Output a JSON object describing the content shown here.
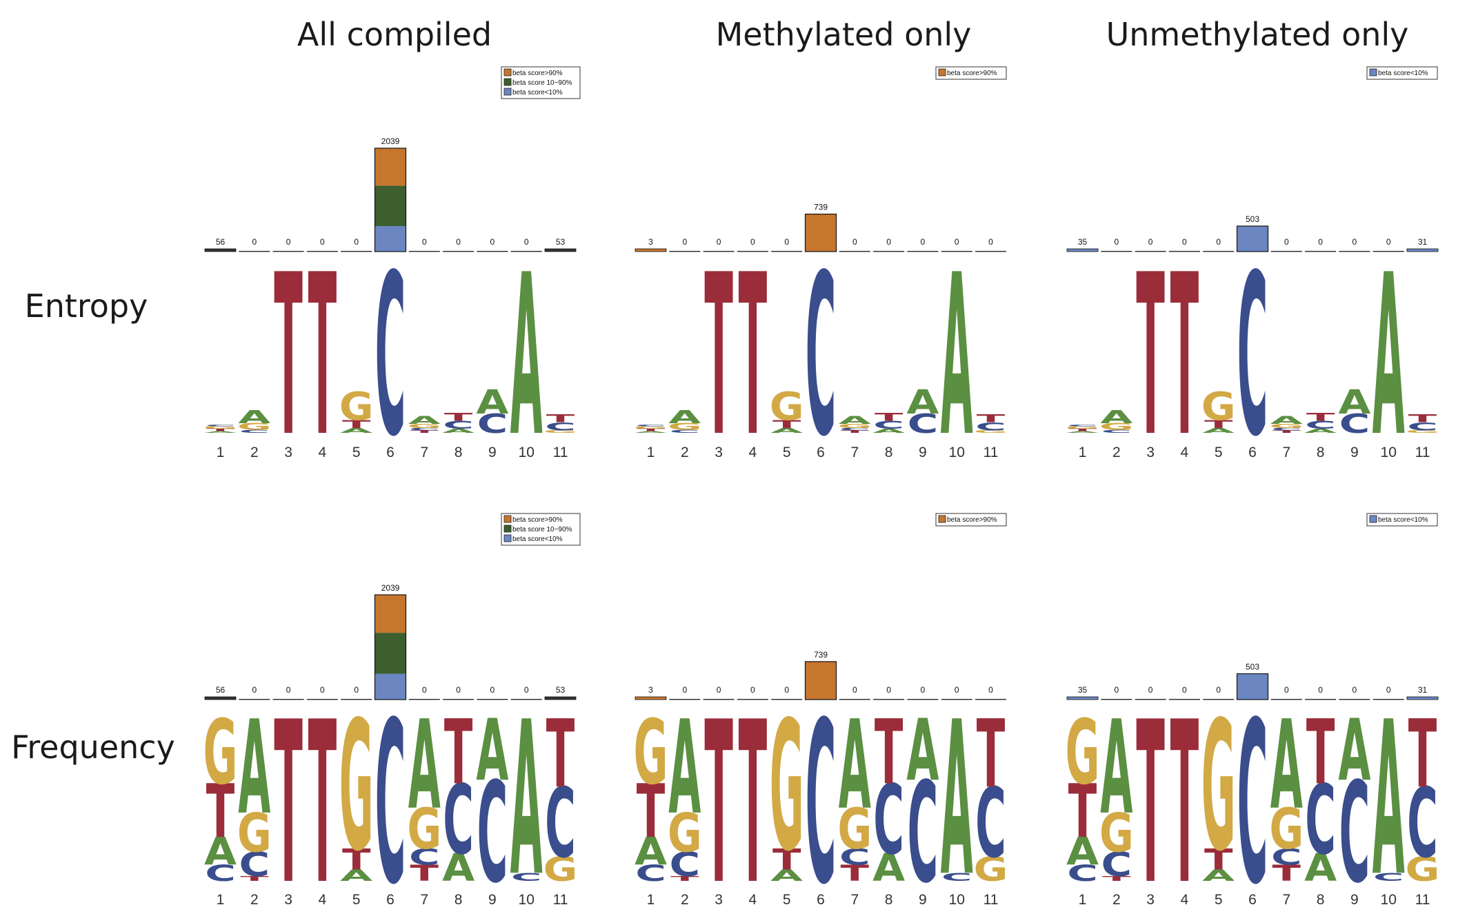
{
  "colors": {
    "A": "#5b8f41",
    "C": "#3a4d8c",
    "G": "#d2a945",
    "T": "#9b2c3a",
    "beta_high": "#c7762e",
    "beta_mid": "#3d5e2d",
    "beta_low": "#6b86c1"
  },
  "columns": [
    "All compiled",
    "Methylated only",
    "Unmethylated only"
  ],
  "rows": [
    "Entropy",
    "Frequency"
  ],
  "legends": [
    [
      "beta score>90%",
      "beta score 10~90%",
      "beta score<10%"
    ],
    [
      "beta score>90%"
    ],
    [
      "beta score<10%"
    ]
  ],
  "legend_colors": [
    [
      "beta_high",
      "beta_mid",
      "beta_low"
    ],
    [
      "beta_high"
    ],
    [
      "beta_low"
    ]
  ],
  "chart_data": {
    "type": "sequence-logo-with-bar",
    "positions": [
      "1",
      "2",
      "3",
      "4",
      "5",
      "6",
      "7",
      "8",
      "9",
      "10",
      "11"
    ],
    "bar_counts": [
      [
        56,
        0,
        0,
        0,
        0,
        2039,
        0,
        0,
        0,
        0,
        53
      ],
      [
        3,
        0,
        0,
        0,
        0,
        739,
        0,
        0,
        0,
        0,
        0
      ],
      [
        35,
        0,
        0,
        0,
        0,
        503,
        0,
        0,
        0,
        0,
        31
      ]
    ],
    "position6_stack_all_compiled": {
      "beta_high": 739,
      "beta_mid": 797,
      "beta_low": 503
    },
    "entropy_logo": [
      [
        [
          "A",
          0.02
        ],
        [
          "T",
          0.03
        ],
        [
          "G",
          0.03
        ],
        [
          "C",
          0.02
        ]
      ],
      [
        [
          "C",
          0.04
        ],
        [
          "G",
          0.08
        ],
        [
          "A",
          0.16
        ]
      ],
      [
        [
          "T",
          2.0
        ]
      ],
      [
        [
          "T",
          2.0
        ]
      ],
      [
        [
          "A",
          0.06
        ],
        [
          "T",
          0.1
        ],
        [
          "G",
          0.35
        ]
      ],
      [
        [
          "C",
          2.0
        ]
      ],
      [
        [
          "T",
          0.03
        ],
        [
          "C",
          0.03
        ],
        [
          "G",
          0.05
        ],
        [
          "A",
          0.1
        ]
      ],
      [
        [
          "A",
          0.05
        ],
        [
          "C",
          0.1
        ],
        [
          "T",
          0.1
        ]
      ],
      [
        [
          "C",
          0.24
        ],
        [
          "A",
          0.3
        ]
      ],
      [
        [
          "A",
          2.0
        ]
      ],
      [
        [
          "G",
          0.03
        ],
        [
          "C",
          0.1
        ],
        [
          "T",
          0.1
        ]
      ]
    ],
    "frequency_logo": [
      [
        [
          "C",
          0.1
        ],
        [
          "A",
          0.17
        ],
        [
          "T",
          0.33
        ],
        [
          "G",
          0.4
        ]
      ],
      [
        [
          "T",
          0.03
        ],
        [
          "C",
          0.15
        ],
        [
          "G",
          0.24
        ],
        [
          "A",
          0.58
        ]
      ],
      [
        [
          "T",
          1.0
        ]
      ],
      [
        [
          "T",
          1.0
        ]
      ],
      [
        [
          "A",
          0.07
        ],
        [
          "T",
          0.13
        ],
        [
          "G",
          0.8
        ]
      ],
      [
        [
          "C",
          1.0
        ]
      ],
      [
        [
          "T",
          0.1
        ],
        [
          "C",
          0.1
        ],
        [
          "G",
          0.25
        ],
        [
          "A",
          0.55
        ]
      ],
      [
        [
          "A",
          0.17
        ],
        [
          "C",
          0.43
        ],
        [
          "T",
          0.4
        ]
      ],
      [
        [
          "C",
          0.62
        ],
        [
          "A",
          0.38
        ]
      ],
      [
        [
          "C",
          0.05
        ],
        [
          "A",
          0.95
        ]
      ],
      [
        [
          "G",
          0.15
        ],
        [
          "C",
          0.43
        ],
        [
          "T",
          0.42
        ]
      ]
    ],
    "y_max_entropy": 2.0,
    "y_max_frequency": 1.0
  }
}
